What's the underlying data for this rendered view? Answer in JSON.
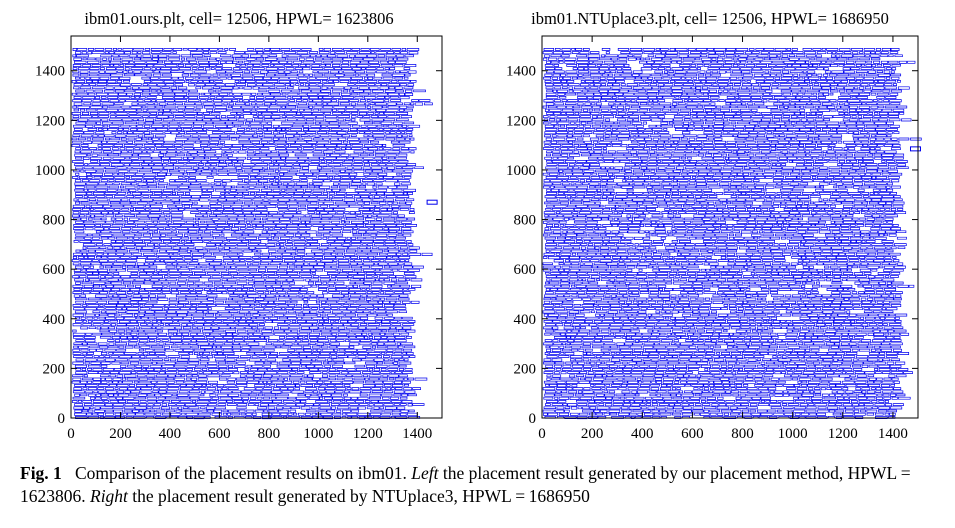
{
  "chart_data": [
    {
      "type": "scatter",
      "title": "ibm01.ours.plt, cell= 12506, HPWL= 1623806",
      "xlabel": "",
      "ylabel": "",
      "xlim": [
        0,
        1500
      ],
      "ylim": [
        0,
        1540
      ],
      "x_ticks": [
        0,
        200,
        400,
        600,
        800,
        1000,
        1200,
        1400
      ],
      "y_ticks": [
        0,
        200,
        400,
        600,
        800,
        1000,
        1200,
        1400
      ],
      "color": "#0000ee",
      "cell_count": 12506,
      "hpwl": 1623806,
      "placement_extent": {
        "x": [
          0,
          1385
        ],
        "y": [
          0,
          1490
        ]
      },
      "outlier_cells": [
        {
          "x": 1460,
          "y": 870
        }
      ]
    },
    {
      "type": "scatter",
      "title": "ibm01.NTUplace3.plt, cell= 12506, HPWL= 1686950",
      "xlabel": "",
      "ylabel": "",
      "xlim": [
        0,
        1500
      ],
      "ylim": [
        0,
        1540
      ],
      "x_ticks": [
        0,
        200,
        400,
        600,
        800,
        1000,
        1200,
        1400
      ],
      "y_ticks": [
        0,
        200,
        400,
        600,
        800,
        1000,
        1200,
        1400
      ],
      "color": "#0000ee",
      "cell_count": 12506,
      "hpwl": 1686950,
      "placement_extent": {
        "x": [
          0,
          1435
        ],
        "y": [
          0,
          1490
        ]
      },
      "outlier_cells": [
        {
          "x": 1490,
          "y": 1085
        }
      ]
    }
  ],
  "caption": {
    "label": "Fig. 1",
    "text1": "Comparison of the placement results on ibm01. ",
    "left_word": "Left",
    "text2": " the placement result generated by our placement method, HPWL = 1623806. ",
    "right_word": "Right",
    "text3": " the placement result generated by NTUplace3, HPWL = 1686950"
  }
}
